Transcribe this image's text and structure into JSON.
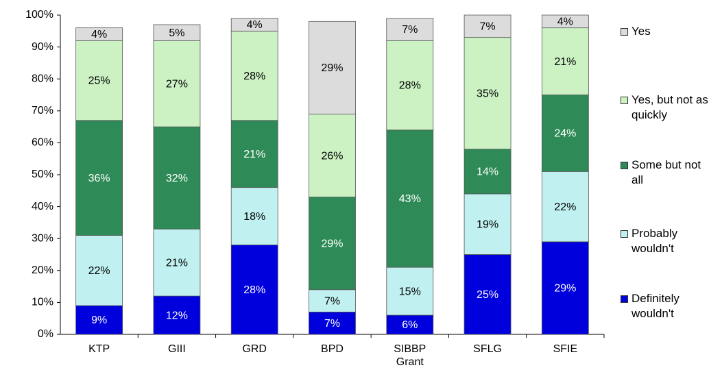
{
  "chart_data": {
    "type": "stacked_bar",
    "categories": [
      "KTP",
      "GIII",
      "GRD",
      "BPD",
      "SIBBP Grant",
      "SFLG",
      "SFIE"
    ],
    "series": [
      {
        "name": "Definitely wouldn't",
        "color": "#0000dd",
        "values": [
          9,
          12,
          28,
          7,
          6,
          25,
          29
        ],
        "value_labels": [
          "9%",
          "12%",
          "28%",
          "7%",
          "6%",
          "25%",
          "29%"
        ]
      },
      {
        "name": "Probably wouldn't",
        "color": "#c0f0f0",
        "values": [
          22,
          21,
          18,
          7,
          15,
          19,
          22
        ],
        "value_labels": [
          "22%",
          "21%",
          "18%",
          "7%",
          "15%",
          "19%",
          "22%"
        ]
      },
      {
        "name": "Some but not all",
        "color": "#2e8b57",
        "values": [
          36,
          32,
          21,
          29,
          43,
          14,
          24
        ],
        "value_labels": [
          "36%",
          "32%",
          "21%",
          "29%",
          "43%",
          "14%",
          "24%"
        ]
      },
      {
        "name": "Yes, but not as quickly",
        "color": "#ccf2c4",
        "values": [
          25,
          27,
          28,
          26,
          28,
          35,
          21
        ],
        "value_labels": [
          "25%",
          "27%",
          "28%",
          "26%",
          "28%",
          "35%",
          "21%"
        ]
      },
      {
        "name": "Yes",
        "color": "#dcdcdc",
        "values": [
          4,
          5,
          4,
          29,
          7,
          7,
          4
        ],
        "value_labels": [
          "4%",
          "5%",
          "4%",
          "29%",
          "7%",
          "7%",
          "4%"
        ]
      }
    ],
    "ylim": [
      0,
      100
    ],
    "yticks": [
      {
        "value": 0,
        "label": "0%"
      },
      {
        "value": 10,
        "label": "10%"
      },
      {
        "value": 20,
        "label": "20%"
      },
      {
        "value": 30,
        "label": "30%"
      },
      {
        "value": 40,
        "label": "40%"
      },
      {
        "value": 50,
        "label": "50%"
      },
      {
        "value": 60,
        "label": "60%"
      },
      {
        "value": 70,
        "label": "70%"
      },
      {
        "value": 80,
        "label": "80%"
      },
      {
        "value": 90,
        "label": "90%"
      },
      {
        "value": 100,
        "label": "100%"
      }
    ],
    "grid": false,
    "legend": "right"
  }
}
